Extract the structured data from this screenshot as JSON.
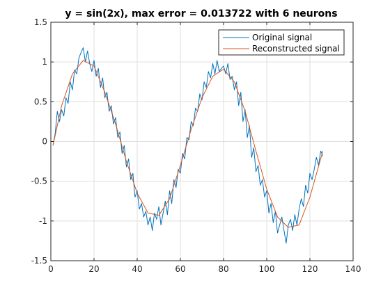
{
  "chart_data": {
    "type": "line",
    "title": "y = sin(2x), max error = 0.013722 with 6 neurons",
    "xlabel": "",
    "ylabel": "",
    "xlim": [
      0,
      140
    ],
    "ylim": [
      -1.5,
      1.5
    ],
    "xticks": [
      0,
      20,
      40,
      60,
      80,
      100,
      120,
      140
    ],
    "xtick_labels": [
      "0",
      "20",
      "40",
      "60",
      "80",
      "100",
      "120",
      "140"
    ],
    "yticks": [
      -1.5,
      -1,
      -0.5,
      0,
      0.5,
      1,
      1.5
    ],
    "ytick_labels": [
      "-1.5",
      "-1",
      "-0.5",
      "0",
      "0.5",
      "1",
      "1.5"
    ],
    "grid": true,
    "legend_position": "top-right",
    "series": [
      {
        "name": "Original signal",
        "color": "#0072bd",
        "x": [
          1,
          2,
          3,
          4,
          5,
          6,
          7,
          8,
          9,
          10,
          11,
          12,
          13,
          14,
          15,
          16,
          17,
          18,
          19,
          20,
          21,
          22,
          23,
          24,
          25,
          26,
          27,
          28,
          29,
          30,
          31,
          32,
          33,
          34,
          35,
          36,
          37,
          38,
          39,
          40,
          41,
          42,
          43,
          44,
          45,
          46,
          47,
          48,
          49,
          50,
          51,
          52,
          53,
          54,
          55,
          56,
          57,
          58,
          59,
          60,
          61,
          62,
          63,
          64,
          65,
          66,
          67,
          68,
          69,
          70,
          71,
          72,
          73,
          74,
          75,
          76,
          77,
          78,
          79,
          80,
          81,
          82,
          83,
          84,
          85,
          86,
          87,
          88,
          89,
          90,
          91,
          92,
          93,
          94,
          95,
          96,
          97,
          98,
          99,
          100,
          101,
          102,
          103,
          104,
          105,
          106,
          107,
          108,
          109,
          110,
          111,
          112,
          113,
          114,
          115,
          116,
          117,
          118,
          119,
          120,
          121,
          122,
          123,
          124,
          125,
          126
        ],
        "y": [
          -0.05,
          0.1,
          0.38,
          0.25,
          0.4,
          0.32,
          0.55,
          0.48,
          0.75,
          0.65,
          0.9,
          0.85,
          1.05,
          1.12,
          1.18,
          1.0,
          1.14,
          0.98,
          0.88,
          1.02,
          0.82,
          0.92,
          0.68,
          0.8,
          0.55,
          0.62,
          0.38,
          0.45,
          0.22,
          0.3,
          0.05,
          0.12,
          -0.15,
          -0.05,
          -0.32,
          -0.22,
          -0.48,
          -0.4,
          -0.7,
          -0.62,
          -0.85,
          -0.78,
          -0.95,
          -0.88,
          -1.05,
          -0.95,
          -1.12,
          -0.9,
          -0.98,
          -0.82,
          -1.05,
          -0.9,
          -0.75,
          -0.92,
          -0.62,
          -0.78,
          -0.48,
          -0.58,
          -0.35,
          -0.4,
          -0.15,
          -0.22,
          0.05,
          0.02,
          0.25,
          0.2,
          0.42,
          0.38,
          0.6,
          0.52,
          0.75,
          0.68,
          0.88,
          0.8,
          0.98,
          0.85,
          1.02,
          0.88,
          0.92,
          0.95,
          0.85,
          0.98,
          0.78,
          0.82,
          0.65,
          0.75,
          0.45,
          0.62,
          0.25,
          0.4,
          0.05,
          0.2,
          -0.2,
          -0.08,
          -0.38,
          -0.3,
          -0.55,
          -0.48,
          -0.7,
          -0.62,
          -0.9,
          -0.78,
          -1.02,
          -0.88,
          -1.15,
          -1.05,
          -0.95,
          -1.12,
          -1.28,
          -1.05,
          -0.98,
          -1.12,
          -0.92,
          -1.05,
          -0.85,
          -0.72,
          -0.82,
          -0.55,
          -0.65,
          -0.4,
          -0.48,
          -0.35,
          -0.2,
          -0.3,
          -0.12,
          -0.18
        ]
      },
      {
        "name": "Reconstructed signal",
        "color": "#d95319",
        "x": [
          1,
          5,
          10,
          15,
          20,
          25,
          30,
          35,
          40,
          45,
          50,
          55,
          60,
          65,
          70,
          75,
          80,
          85,
          90,
          95,
          100,
          105,
          110,
          115,
          120,
          126
        ],
        "y": [
          -0.05,
          0.45,
          0.85,
          1.02,
          0.95,
          0.62,
          0.22,
          -0.25,
          -0.65,
          -0.9,
          -0.93,
          -0.72,
          -0.3,
          0.15,
          0.55,
          0.82,
          0.91,
          0.75,
          0.38,
          -0.12,
          -0.6,
          -0.95,
          -1.08,
          -1.05,
          -0.7,
          -0.12
        ]
      }
    ]
  }
}
